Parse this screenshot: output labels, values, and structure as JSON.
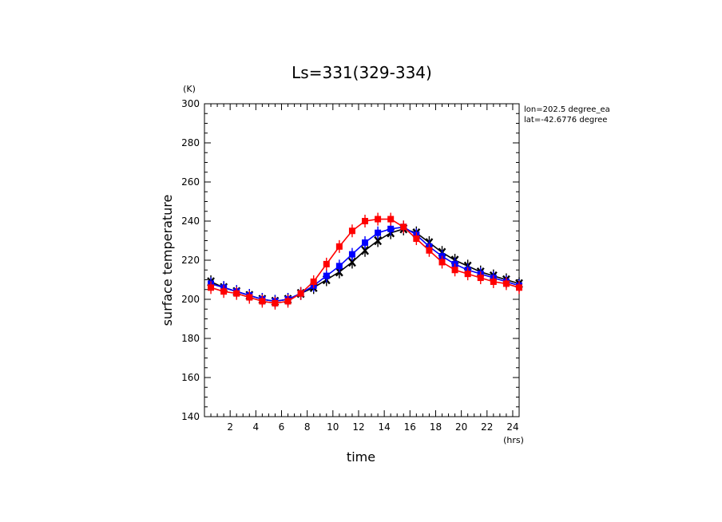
{
  "chart_data": {
    "type": "line",
    "title": "Ls=331(329-334)",
    "xlabel": "time",
    "ylabel": "surface temperature",
    "x_unit": "(hrs)",
    "y_unit": "(K)",
    "annotations": [
      "lon=202.5 degree_ea",
      "lat=-42.6776 degree"
    ],
    "xlim": [
      0,
      24.5
    ],
    "ylim": [
      140,
      300
    ],
    "xticks": [
      2,
      4,
      6,
      8,
      10,
      12,
      14,
      16,
      18,
      20,
      22,
      24
    ],
    "yticks": [
      140,
      160,
      180,
      200,
      220,
      240,
      260,
      280,
      300
    ],
    "x": [
      0.5,
      1.5,
      2.5,
      3.5,
      4.5,
      5.5,
      6.5,
      7.5,
      8.5,
      9.5,
      10.5,
      11.5,
      12.5,
      13.5,
      14.5,
      15.5,
      16.5,
      17.5,
      18.5,
      19.5,
      20.5,
      21.5,
      22.5,
      23.5,
      24.5
    ],
    "series": [
      {
        "color": "#000000",
        "marker": "x",
        "values": [
          209,
          206,
          204,
          202,
          200,
          199,
          200,
          203,
          206,
          210,
          214,
          219,
          225,
          230,
          234,
          236,
          234,
          229,
          224,
          220,
          217,
          214,
          212,
          210,
          208
        ]
      },
      {
        "color": "#0000ff",
        "marker": "square",
        "values": [
          208,
          206,
          204,
          202,
          200,
          199,
          200,
          203,
          207,
          212,
          217,
          223,
          229,
          234,
          236,
          237,
          233,
          227,
          222,
          218,
          215,
          213,
          211,
          209,
          207
        ]
      },
      {
        "color": "#ff0000",
        "marker": "square",
        "values": [
          206,
          204,
          203,
          201,
          199,
          198,
          199,
          203,
          209,
          218,
          227,
          235,
          240,
          241,
          241,
          237,
          231,
          225,
          219,
          215,
          213,
          211,
          209,
          208,
          206
        ]
      }
    ],
    "grid": false
  }
}
